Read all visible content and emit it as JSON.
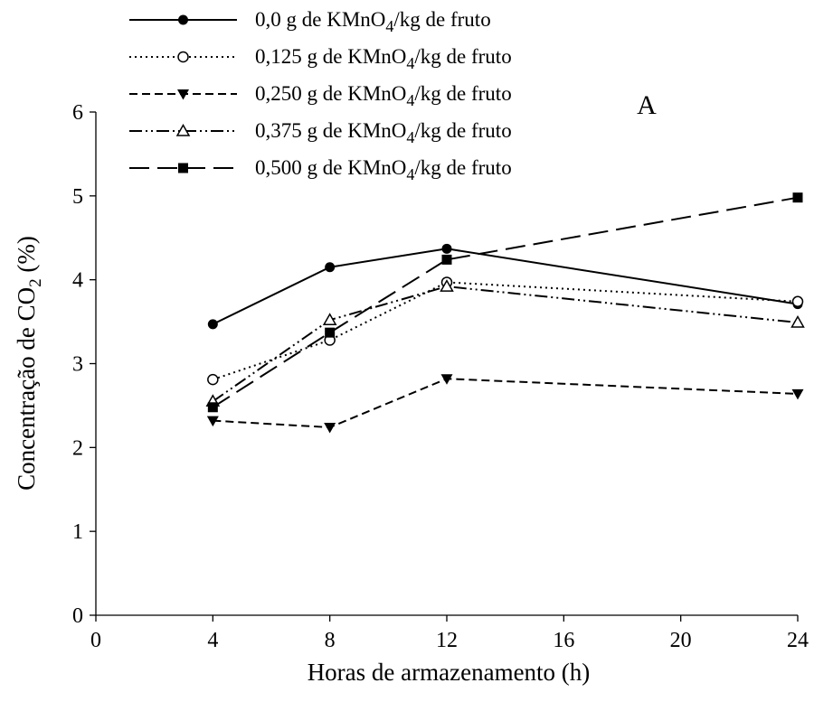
{
  "chart_data": {
    "type": "line",
    "panel_label": "A",
    "xlabel": "Horas de armazenamento (h)",
    "ylabel_main": "Concentração de CO",
    "ylabel_sub": "2",
    "ylabel_unit": " (%)",
    "x_ticks": [
      "0",
      "4",
      "8",
      "12",
      "16",
      "20",
      "24"
    ],
    "y_ticks": [
      "0",
      "1",
      "2",
      "3",
      "4",
      "5",
      "6"
    ],
    "xlim": [
      0,
      24
    ],
    "ylim": [
      0,
      6
    ],
    "grid": false,
    "legend_position": "top-left",
    "x": [
      4,
      8,
      12,
      24
    ],
    "series": [
      {
        "legend_prefix": "0,0 g de KMnO",
        "legend_sub": "4",
        "legend_suffix": "/kg de fruto",
        "marker": "circle-filled",
        "dash": "solid",
        "values": [
          3.47,
          4.15,
          4.37,
          3.71
        ]
      },
      {
        "legend_prefix": "0,125 g de KMnO",
        "legend_sub": "4",
        "legend_suffix": "/kg de fruto",
        "marker": "circle-open",
        "dash": "dotted",
        "values": [
          2.81,
          3.28,
          3.97,
          3.74
        ]
      },
      {
        "legend_prefix": "0,250 g de KMnO",
        "legend_sub": "4",
        "legend_suffix": "/kg de fruto",
        "marker": "triangle-down-filled",
        "dash": "dashed",
        "values": [
          2.32,
          2.24,
          2.82,
          2.64
        ]
      },
      {
        "legend_prefix": "0,375 g de KMnO",
        "legend_sub": "4",
        "legend_suffix": "/kg de fruto",
        "marker": "triangle-up-open",
        "dash": "dash-dot-dot",
        "values": [
          2.55,
          3.52,
          3.92,
          3.49
        ]
      },
      {
        "legend_prefix": "0,500 g de KMnO",
        "legend_sub": "4",
        "legend_suffix": "/kg de fruto",
        "marker": "square-filled",
        "dash": "long-dash",
        "values": [
          2.48,
          3.37,
          4.24,
          4.98
        ]
      }
    ]
  }
}
